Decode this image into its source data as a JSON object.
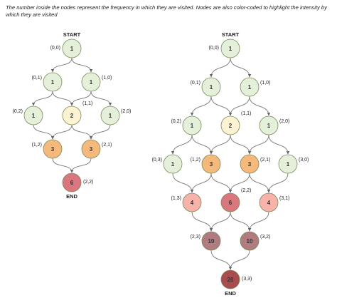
{
  "caption": "The number inside the nodes represent the frequency in which they are visited. Nodes are also color-coded to highlight the intensity by which they are visited",
  "colors": {
    "level1": "#e4f0d9",
    "level2": "#fdf3d2",
    "level3": "#f5b97c",
    "level4": "#f7b2a9",
    "level6": "#d9767e",
    "level10": "#b07c80",
    "level20": "#a84d4f",
    "stroke": "#7a8a5a",
    "edge": "#777777"
  },
  "diagrams": [
    {
      "start_label": "START",
      "end_label": "END",
      "nodes": [
        {
          "coord": "(0,0)",
          "value": "1",
          "level": "level1"
        },
        {
          "coord": "(0,1)",
          "value": "1",
          "level": "level1"
        },
        {
          "coord": "(1,0)",
          "value": "1",
          "level": "level1"
        },
        {
          "coord": "(0,2)",
          "value": "1",
          "level": "level1"
        },
        {
          "coord": "(1,1)",
          "value": "2",
          "level": "level2"
        },
        {
          "coord": "(2,0)",
          "value": "1",
          "level": "level1"
        },
        {
          "coord": "(1,2)",
          "value": "3",
          "level": "level3"
        },
        {
          "coord": "(2,1)",
          "value": "3",
          "level": "level3"
        },
        {
          "coord": "(2,2)",
          "value": "6",
          "level": "level6"
        }
      ]
    },
    {
      "start_label": "START",
      "end_label": "END",
      "nodes": [
        {
          "coord": "(0,0)",
          "value": "1",
          "level": "level1"
        },
        {
          "coord": "(0,1)",
          "value": "1",
          "level": "level1"
        },
        {
          "coord": "(1,0)",
          "value": "1",
          "level": "level1"
        },
        {
          "coord": "(0,2)",
          "value": "1",
          "level": "level1"
        },
        {
          "coord": "(1,1)",
          "value": "2",
          "level": "level2"
        },
        {
          "coord": "(2,0)",
          "value": "1",
          "level": "level1"
        },
        {
          "coord": "(0,3)",
          "value": "1",
          "level": "level1"
        },
        {
          "coord": "(1,2)",
          "value": "3",
          "level": "level3"
        },
        {
          "coord": "(2,1)",
          "value": "3",
          "level": "level3"
        },
        {
          "coord": "(3,0)",
          "value": "1",
          "level": "level1"
        },
        {
          "coord": "(1,3)",
          "value": "4",
          "level": "level4"
        },
        {
          "coord": "(2,2)",
          "value": "6",
          "level": "level6"
        },
        {
          "coord": "(3,1)",
          "value": "4",
          "level": "level4"
        },
        {
          "coord": "(2,3)",
          "value": "10",
          "level": "level10"
        },
        {
          "coord": "(3,2)",
          "value": "10",
          "level": "level10"
        },
        {
          "coord": "(3,3)",
          "value": "20",
          "level": "level20"
        }
      ]
    }
  ]
}
